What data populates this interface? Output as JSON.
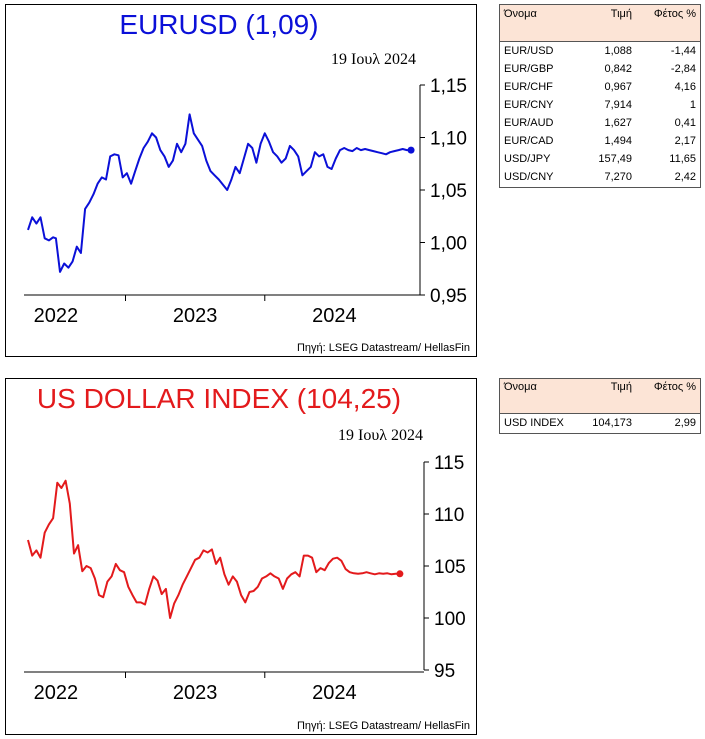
{
  "charts": [
    {
      "title": "EURUSD (1,09)",
      "date": "19 Ιουλ 2024",
      "source": "Πηγή: LSEG Datastream/ HellasFin",
      "color": "#0b10d8"
    },
    {
      "title": "US DOLLAR INDEX (104,25)",
      "date": "19 Ιουλ 2024",
      "source": "Πηγή: LSEG Datastream/ HellasFin",
      "color": "#e31a1c"
    }
  ],
  "chart_data": [
    {
      "type": "line",
      "title": "EURUSD (1,09)",
      "series": [
        {
          "x": [
            2021.8,
            2021.83,
            2021.86,
            2021.89,
            2021.92,
            2021.95,
            2021.98,
            2022.0,
            2022.03,
            2022.06,
            2022.09,
            2022.12,
            2022.15,
            2022.18,
            2022.21,
            2022.24,
            2022.27,
            2022.3,
            2022.33,
            2022.36,
            2022.39,
            2022.42,
            2022.45,
            2022.48,
            2022.51,
            2022.54,
            2022.57,
            2022.6,
            2022.63,
            2022.66,
            2022.69,
            2022.72,
            2022.75,
            2022.78,
            2022.81,
            2022.84,
            2022.87,
            2022.9,
            2022.93,
            2022.96,
            2022.99,
            2023.02,
            2023.05,
            2023.08,
            2023.11,
            2023.14,
            2023.17,
            2023.2,
            2023.23,
            2023.26,
            2023.29,
            2023.32,
            2023.35,
            2023.38,
            2023.41,
            2023.44,
            2023.47,
            2023.5,
            2023.53,
            2023.56,
            2023.59,
            2023.62,
            2023.65,
            2023.68,
            2023.71,
            2023.74,
            2023.77,
            2023.8,
            2023.83,
            2023.86,
            2023.89,
            2023.92,
            2023.95,
            2023.98,
            2024.01,
            2024.04,
            2024.07,
            2024.1,
            2024.13,
            2024.16,
            2024.19,
            2024.22,
            2024.25,
            2024.28,
            2024.31,
            2024.34,
            2024.37,
            2024.4,
            2024.43,
            2024.46,
            2024.49,
            2024.52,
            2024.55
          ],
          "y": [
            1.012,
            1.024,
            1.018,
            1.024,
            1.004,
            1.002,
            1.005,
            1.004,
            0.972,
            0.98,
            0.976,
            0.982,
            0.996,
            0.99,
            1.032,
            1.038,
            1.046,
            1.056,
            1.062,
            1.06,
            1.082,
            1.084,
            1.083,
            1.062,
            1.066,
            1.056,
            1.068,
            1.08,
            1.09,
            1.096,
            1.104,
            1.1,
            1.088,
            1.082,
            1.072,
            1.078,
            1.094,
            1.086,
            1.094,
            1.122,
            1.104,
            1.098,
            1.092,
            1.078,
            1.068,
            1.064,
            1.06,
            1.055,
            1.05,
            1.06,
            1.072,
            1.066,
            1.08,
            1.094,
            1.09,
            1.076,
            1.094,
            1.104,
            1.096,
            1.086,
            1.082,
            1.076,
            1.08,
            1.092,
            1.088,
            1.082,
            1.064,
            1.068,
            1.072,
            1.086,
            1.082,
            1.084,
            1.072,
            1.07,
            1.08,
            1.088,
            1.09,
            1.088,
            1.087,
            1.09,
            1.088,
            1.089,
            1.088,
            1.087,
            1.086,
            1.085,
            1.084,
            1.086,
            1.087,
            1.088,
            1.089,
            1.088,
            1.088
          ]
        }
      ],
      "xticks": [
        "2022",
        "2023",
        "2024"
      ],
      "yticks": [
        "1,15",
        "1,10",
        "1,05",
        "1,00",
        "0,95"
      ],
      "ylim": [
        0.95,
        1.15
      ],
      "xlim": [
        2021.8,
        2024.6
      ]
    },
    {
      "type": "line",
      "title": "US DOLLAR INDEX (104,25)",
      "series": [
        {
          "x": [
            2021.8,
            2021.83,
            2021.86,
            2021.89,
            2021.92,
            2021.95,
            2021.98,
            2022.01,
            2022.04,
            2022.07,
            2022.1,
            2022.13,
            2022.16,
            2022.19,
            2022.22,
            2022.25,
            2022.28,
            2022.31,
            2022.34,
            2022.37,
            2022.4,
            2022.43,
            2022.46,
            2022.49,
            2022.52,
            2022.55,
            2022.58,
            2022.61,
            2022.64,
            2022.67,
            2022.7,
            2022.73,
            2022.76,
            2022.79,
            2022.82,
            2022.85,
            2022.88,
            2022.91,
            2022.94,
            2022.97,
            2023.0,
            2023.03,
            2023.06,
            2023.09,
            2023.12,
            2023.15,
            2023.18,
            2023.21,
            2023.24,
            2023.27,
            2023.3,
            2023.33,
            2023.36,
            2023.39,
            2023.42,
            2023.45,
            2023.48,
            2023.51,
            2023.54,
            2023.57,
            2023.6,
            2023.63,
            2023.66,
            2023.69,
            2023.72,
            2023.75,
            2023.78,
            2023.81,
            2023.84,
            2023.87,
            2023.9,
            2023.93,
            2023.96,
            2023.99,
            2024.02,
            2024.05,
            2024.08,
            2024.11,
            2024.14,
            2024.17,
            2024.2,
            2024.23,
            2024.26,
            2024.29,
            2024.32,
            2024.35,
            2024.38,
            2024.41,
            2024.44,
            2024.47
          ],
          "y": [
            107.5,
            106.0,
            106.5,
            105.8,
            108.2,
            109.0,
            109.6,
            113.0,
            112.5,
            113.2,
            111.0,
            106.2,
            107.0,
            104.5,
            105.0,
            104.8,
            103.8,
            102.2,
            102.0,
            103.5,
            104.0,
            105.2,
            104.6,
            104.4,
            103.0,
            102.2,
            101.5,
            101.5,
            101.3,
            102.8,
            104.0,
            103.6,
            102.3,
            102.8,
            100.0,
            101.4,
            102.2,
            103.2,
            104.0,
            104.8,
            105.6,
            105.8,
            106.5,
            106.3,
            106.6,
            105.2,
            105.8,
            104.2,
            103.2,
            104.0,
            103.5,
            102.2,
            101.5,
            102.5,
            102.6,
            103.0,
            103.8,
            104.0,
            104.3,
            104.0,
            103.8,
            102.8,
            103.8,
            104.2,
            104.4,
            104.0,
            106.0,
            106.0,
            105.8,
            104.4,
            104.8,
            104.6,
            105.3,
            105.7,
            105.8,
            105.5,
            104.7,
            104.4,
            104.3,
            104.25,
            104.3,
            104.4,
            104.3,
            104.2,
            104.3,
            104.25,
            104.3,
            104.2,
            104.25,
            104.25
          ]
        }
      ],
      "xticks": [
        "2022",
        "2023",
        "2024"
      ],
      "yticks": [
        "115",
        "110",
        "105",
        "100",
        "95"
      ],
      "ylim": [
        95,
        115
      ],
      "xlim": [
        2021.8,
        2024.6
      ]
    }
  ],
  "tables": [
    {
      "headers": [
        "Όνομα",
        "Τιμή",
        "Φέτος %"
      ],
      "rows": [
        [
          "EUR/USD",
          "1,088",
          "-1,44"
        ],
        [
          "EUR/GBP",
          "0,842",
          "-2,84"
        ],
        [
          "EUR/CHF",
          "0,967",
          "4,16"
        ],
        [
          "EUR/CNY",
          "7,914",
          "1"
        ],
        [
          "EUR/AUD",
          "1,627",
          "0,41"
        ],
        [
          "EUR/CAD",
          "1,494",
          "2,17"
        ],
        [
          "USD/JPY",
          "157,49",
          "11,65"
        ],
        [
          "USD/CNY",
          "7,270",
          "2,42"
        ]
      ]
    },
    {
      "headers": [
        "Όνομα",
        "Τιμή",
        "Φέτος %"
      ],
      "rows": [
        [
          "USD INDEX",
          "104,173",
          "2,99"
        ]
      ]
    }
  ]
}
